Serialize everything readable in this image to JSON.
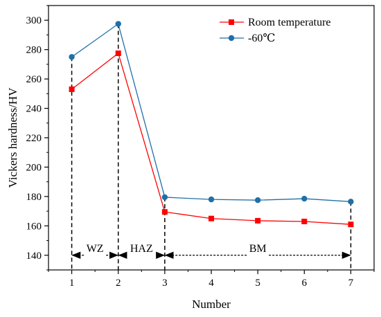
{
  "chart_data": {
    "type": "line",
    "xlabel": "Number",
    "ylabel": "Vickers hardness/HV",
    "x": [
      1,
      2,
      3,
      4,
      5,
      6,
      7
    ],
    "xlim": [
      0.5,
      7.5
    ],
    "ylim": [
      130,
      310
    ],
    "xticks": [
      1,
      2,
      3,
      4,
      5,
      6,
      7
    ],
    "yticks": [
      140,
      160,
      180,
      200,
      220,
      240,
      260,
      280,
      300
    ],
    "grid": false,
    "legend_position": "top-right",
    "series": [
      {
        "name": "Room temperature",
        "color": "#ff0000",
        "marker": "square",
        "values": [
          253,
          277.5,
          169.5,
          165,
          163.5,
          163,
          161
        ]
      },
      {
        "name": "-60℃",
        "color": "#1f6fa8",
        "marker": "circle",
        "values": [
          275,
          297.5,
          179.5,
          178,
          177.5,
          178.5,
          176.5
        ]
      }
    ],
    "regions": [
      {
        "label": "WZ",
        "from": 1,
        "to": 2
      },
      {
        "label": "HAZ",
        "from": 2,
        "to": 3
      },
      {
        "label": "BM",
        "from": 3,
        "to": 7
      }
    ],
    "region_arrow_y": 140
  }
}
